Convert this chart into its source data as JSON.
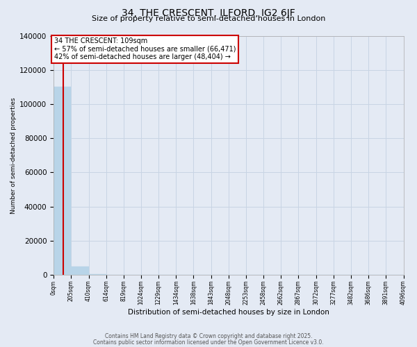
{
  "title": "34, THE CRESCENT, ILFORD, IG2 6JF",
  "subtitle": "Size of property relative to semi-detached houses in London",
  "xlabel": "Distribution of semi-detached houses by size in London",
  "ylabel": "Number of semi-detached properties",
  "footnote1": "Contains HM Land Registry data © Crown copyright and database right 2025.",
  "footnote2": "Contains public sector information licensed under the Open Government Licence v3.0.",
  "property_size": 109,
  "property_label": "34 THE CRESCENT: 109sqm",
  "pct_smaller": "57% of semi-detached houses are smaller (66,471)",
  "pct_larger": "42% of semi-detached houses are larger (48,404)",
  "bin_edges": [
    0,
    205,
    410,
    614,
    819,
    1024,
    1229,
    1434,
    1638,
    1843,
    2048,
    2253,
    2458,
    2662,
    2867,
    3072,
    3277,
    3482,
    3686,
    3891,
    4096
  ],
  "bar_heights": [
    110000,
    5000,
    350,
    90,
    40,
    15,
    8,
    4,
    2,
    1,
    1,
    0,
    0,
    0,
    0,
    0,
    0,
    0,
    0,
    0
  ],
  "bar_color": "#b8d4e8",
  "bar_edgecolor": "#b8d4e8",
  "grid_color": "#c8d4e4",
  "background_color": "#e4eaf4",
  "vline_color": "#cc0000",
  "annotation_box_color": "#cc0000",
  "ylim": [
    0,
    140000
  ],
  "yticks": [
    0,
    20000,
    40000,
    60000,
    80000,
    100000,
    120000,
    140000
  ]
}
